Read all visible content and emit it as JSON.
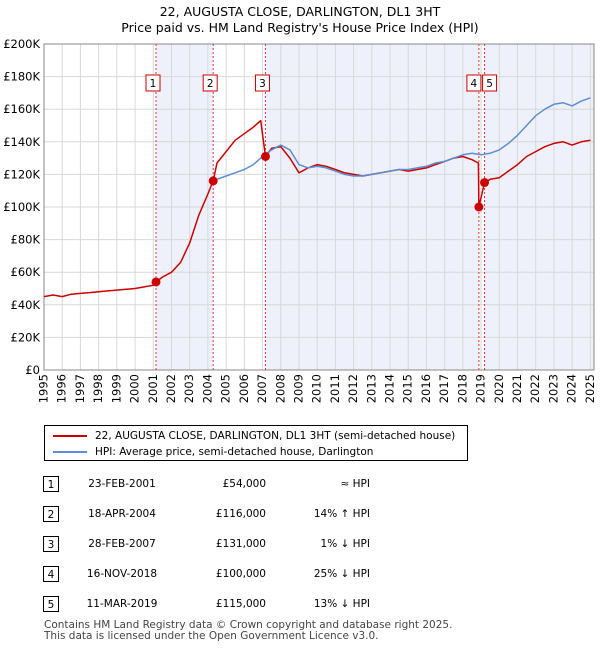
{
  "chart_data": {
    "type": "line",
    "title": "22, AUGUSTA CLOSE, DARLINGTON, DL1 3HT",
    "subtitle": "Price paid vs. HM Land Registry's House Price Index (HPI)",
    "xlabel": "",
    "ylabel": "",
    "xlim": [
      1995,
      2025.2
    ],
    "ylim": [
      0,
      200000
    ],
    "y_ticks": [
      0,
      20000,
      40000,
      60000,
      80000,
      100000,
      120000,
      140000,
      160000,
      180000,
      200000
    ],
    "y_tick_labels": [
      "£0",
      "£20K",
      "£40K",
      "£60K",
      "£80K",
      "£100K",
      "£120K",
      "£140K",
      "£160K",
      "£180K",
      "£200K"
    ],
    "x_ticks": [
      1995,
      1996,
      1997,
      1998,
      1999,
      2000,
      2001,
      2002,
      2003,
      2004,
      2005,
      2006,
      2007,
      2008,
      2009,
      2010,
      2011,
      2012,
      2013,
      2014,
      2015,
      2016,
      2017,
      2018,
      2019,
      2020,
      2021,
      2022,
      2023,
      2024,
      2025
    ],
    "grid": true,
    "series": [
      {
        "name": "22, AUGUSTA CLOSE, DARLINGTON, DL1 3HT (semi-detached house)",
        "color": "#cc0000",
        "x": [
          1995.0,
          1995.5,
          1996.0,
          1996.5,
          1997.0,
          1997.5,
          1998.0,
          1998.5,
          1999.0,
          1999.5,
          2000.0,
          2000.5,
          2001.0,
          2001.15,
          2001.5,
          2002.0,
          2002.5,
          2003.0,
          2003.5,
          2004.0,
          2004.29,
          2004.5,
          2005.0,
          2005.5,
          2006.0,
          2006.5,
          2006.9,
          2007.16,
          2007.5,
          2008.0,
          2008.5,
          2009.0,
          2009.5,
          2010.0,
          2010.5,
          2011.0,
          2011.5,
          2012.0,
          2012.5,
          2013.0,
          2013.5,
          2014.0,
          2014.5,
          2015.0,
          2015.5,
          2016.0,
          2016.5,
          2017.0,
          2017.5,
          2018.0,
          2018.5,
          2018.85,
          2018.88,
          2019.19,
          2019.5,
          2020.0,
          2020.5,
          2021.0,
          2021.5,
          2022.0,
          2022.5,
          2023.0,
          2023.5,
          2024.0,
          2024.5,
          2025.0
        ],
        "values": [
          45000,
          46000,
          45000,
          46500,
          47000,
          47500,
          48000,
          48500,
          49000,
          49500,
          50000,
          51000,
          52000,
          54000,
          57000,
          60000,
          66000,
          78000,
          95000,
          108000,
          116000,
          127000,
          134000,
          141000,
          145000,
          149000,
          153000,
          131000,
          136000,
          137000,
          130000,
          121000,
          124000,
          126000,
          125000,
          123000,
          121000,
          120000,
          119000,
          120000,
          121000,
          122000,
          123000,
          122000,
          123000,
          124000,
          126000,
          128000,
          130000,
          131000,
          129000,
          127000,
          100000,
          115000,
          117000,
          118000,
          122000,
          126000,
          131000,
          134000,
          137000,
          139000,
          140000,
          138000,
          140000,
          141000
        ]
      },
      {
        "name": "HPI: Average price, semi-detached house, Darlington",
        "color": "#5b8fd1",
        "x": [
          2004.29,
          2004.5,
          2005.0,
          2005.5,
          2006.0,
          2006.5,
          2007.0,
          2007.5,
          2008.0,
          2008.5,
          2009.0,
          2009.5,
          2010.0,
          2010.5,
          2011.0,
          2011.5,
          2012.0,
          2012.5,
          2013.0,
          2013.5,
          2014.0,
          2014.5,
          2015.0,
          2015.5,
          2016.0,
          2016.5,
          2017.0,
          2017.5,
          2018.0,
          2018.5,
          2019.0,
          2019.5,
          2020.0,
          2020.5,
          2021.0,
          2021.5,
          2022.0,
          2022.5,
          2023.0,
          2023.5,
          2024.0,
          2024.5,
          2025.0
        ],
        "values": [
          116000,
          117000,
          119000,
          121000,
          123000,
          126000,
          131000,
          135000,
          138000,
          135000,
          126000,
          124000,
          125000,
          124000,
          122000,
          120000,
          119000,
          119000,
          120000,
          121000,
          122000,
          123000,
          123000,
          124000,
          125000,
          127000,
          128000,
          130000,
          132000,
          133000,
          132000,
          133000,
          135000,
          139000,
          144000,
          150000,
          156000,
          160000,
          163000,
          164000,
          162000,
          165000,
          167000
        ]
      }
    ],
    "sales": [
      {
        "id": "1",
        "x": 2001.15,
        "price": 54000
      },
      {
        "id": "2",
        "x": 2004.29,
        "price": 116000
      },
      {
        "id": "3",
        "x": 2007.16,
        "price": 131000
      },
      {
        "id": "4",
        "x": 2018.88,
        "price": 100000
      },
      {
        "id": "5",
        "x": 2019.19,
        "price": 115000
      }
    ],
    "label_markers": [
      {
        "id": "1",
        "x": 2001.15
      },
      {
        "id": "2",
        "x": 2004.29
      },
      {
        "id": "3",
        "x": 2007.16
      },
      {
        "id": "4",
        "x": 2018.88
      },
      {
        "id": "5",
        "x": 2019.19
      }
    ],
    "shaded_spans": [
      [
        2001.15,
        2004.29
      ],
      [
        2007.16,
        2018.88
      ],
      [
        2019.19,
        2025.2
      ]
    ]
  },
  "legend": {
    "property_label": "22, AUGUSTA CLOSE, DARLINGTON, DL1 3HT (semi-detached house)",
    "hpi_label": "HPI: Average price, semi-detached house, Darlington",
    "property_color": "#cc0000",
    "hpi_color": "#5b8fd1"
  },
  "transactions": [
    {
      "num": "1",
      "date": "23-FEB-2001",
      "price": "£54,000",
      "hpi": "≈ HPI"
    },
    {
      "num": "2",
      "date": "18-APR-2004",
      "price": "£116,000",
      "hpi": "14% ↑ HPI"
    },
    {
      "num": "3",
      "date": "28-FEB-2007",
      "price": "£131,000",
      "hpi": "1% ↓ HPI"
    },
    {
      "num": "4",
      "date": "16-NOV-2018",
      "price": "£100,000",
      "hpi": "25% ↓ HPI"
    },
    {
      "num": "5",
      "date": "11-MAR-2019",
      "price": "£115,000",
      "hpi": "13% ↓ HPI"
    }
  ],
  "footer": {
    "line1": "Contains HM Land Registry data © Crown copyright and database right 2025.",
    "line2": "This data is licensed under the Open Government Licence v3.0."
  }
}
